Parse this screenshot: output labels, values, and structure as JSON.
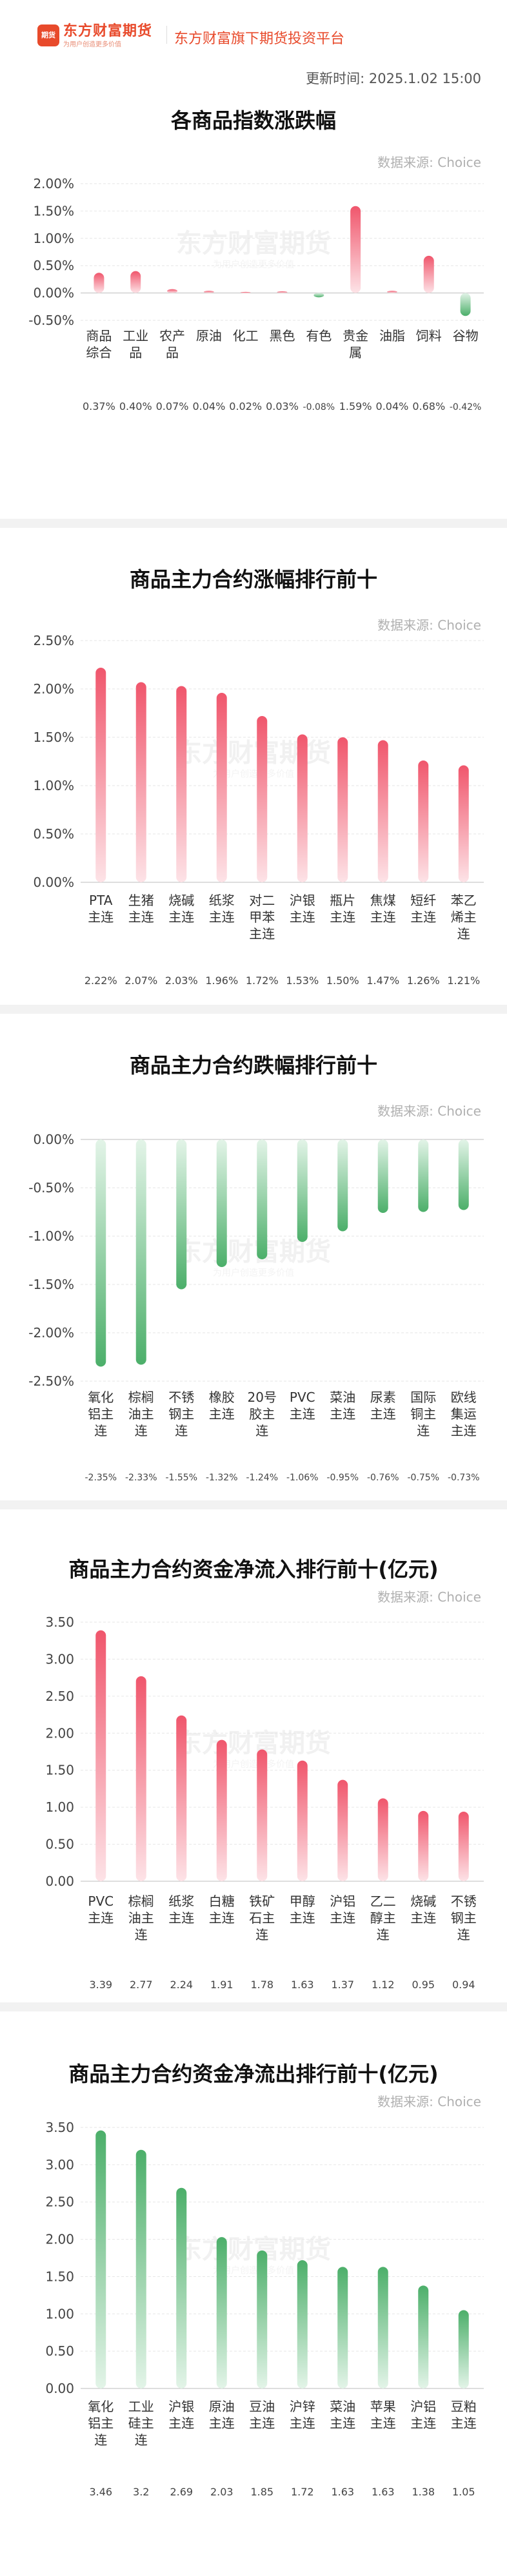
{
  "header": {
    "logo_mark": "期货",
    "logo_name": "东方财富期货",
    "logo_sub": "为用户创造更多价值",
    "slogan": "东方财富旗下期货投资平台",
    "update_label": "更新时间: ",
    "update_time": "2025.1.02 15:00"
  },
  "source_label": "数据来源: Choice",
  "watermark": {
    "main": "东方财富期货",
    "sub": "为用户创造更多价值"
  },
  "charts": [
    {
      "title": "各商品指数涨跌幅",
      "chart_data": {
        "type": "bar",
        "title": "各商品指数涨跌幅",
        "categories": [
          [
            "商品",
            "综合"
          ],
          [
            "工业",
            "品"
          ],
          [
            "农产",
            "品"
          ],
          [
            "原油"
          ],
          [
            "化工"
          ],
          [
            "黑色"
          ],
          [
            "有色"
          ],
          [
            "贵金",
            "属"
          ],
          [
            "油脂"
          ],
          [
            "饲料"
          ],
          [
            "谷物"
          ]
        ],
        "values": [
          0.37,
          0.4,
          0.07,
          0.04,
          0.02,
          0.03,
          -0.08,
          1.59,
          0.04,
          0.68,
          -0.42
        ],
        "value_labels": [
          "0.37%",
          "0.40%",
          "0.07%",
          "0.04%",
          "0.02%",
          "0.03%",
          "-0.08%",
          "1.59%",
          "0.04%",
          "0.68%",
          "-0.42%"
        ],
        "yticks": [
          "2.00%",
          "1.50%",
          "1.00%",
          "0.50%",
          "0.00%",
          "-0.50%"
        ],
        "ylim": [
          -0.5,
          2.0
        ],
        "ytick_values": [
          2.0,
          1.5,
          1.0,
          0.5,
          0.0,
          -0.5
        ],
        "positive_color": "#f0566c",
        "negative_color": "#4caf6a"
      }
    },
    {
      "title": "商品主力合约涨幅排行前十",
      "chart_data": {
        "type": "bar",
        "title": "商品主力合约涨幅排行前十",
        "categories": [
          [
            "PTA",
            "主连"
          ],
          [
            "生猪",
            "主连"
          ],
          [
            "烧碱",
            "主连"
          ],
          [
            "纸浆",
            "主连"
          ],
          [
            "对二",
            "甲苯",
            "主连"
          ],
          [
            "沪银",
            "主连"
          ],
          [
            "瓶片",
            "主连"
          ],
          [
            "焦煤",
            "主连"
          ],
          [
            "短纤",
            "主连"
          ],
          [
            "苯乙",
            "烯主",
            "连"
          ]
        ],
        "values": [
          2.22,
          2.07,
          2.03,
          1.96,
          1.72,
          1.53,
          1.5,
          1.47,
          1.26,
          1.21
        ],
        "value_labels": [
          "2.22%",
          "2.07%",
          "2.03%",
          "1.96%",
          "1.72%",
          "1.53%",
          "1.50%",
          "1.47%",
          "1.26%",
          "1.21%"
        ],
        "yticks": [
          "2.50%",
          "2.00%",
          "1.50%",
          "1.00%",
          "0.50%",
          "0.00%"
        ],
        "ylim": [
          0,
          2.5
        ],
        "ytick_values": [
          2.5,
          2.0,
          1.5,
          1.0,
          0.5,
          0.0
        ],
        "positive_color": "#f0566c",
        "negative_color": "#4caf6a"
      }
    },
    {
      "title": "商品主力合约跌幅排行前十",
      "chart_data": {
        "type": "bar",
        "title": "商品主力合约跌幅排行前十",
        "categories": [
          [
            "氧化",
            "铝主",
            "连"
          ],
          [
            "棕榈",
            "油主",
            "连"
          ],
          [
            "不锈",
            "钢主",
            "连"
          ],
          [
            "橡胶",
            "主连"
          ],
          [
            "20号",
            "胶主",
            "连"
          ],
          [
            "PVC",
            "主连"
          ],
          [
            "菜油",
            "主连"
          ],
          [
            "尿素",
            "主连"
          ],
          [
            "国际",
            "铜主",
            "连"
          ],
          [
            "欧线",
            "集运",
            "主连"
          ]
        ],
        "values": [
          -2.35,
          -2.33,
          -1.55,
          -1.32,
          -1.24,
          -1.06,
          -0.95,
          -0.76,
          -0.75,
          -0.73
        ],
        "value_labels": [
          "-2.35%",
          "-2.33%",
          "-1.55%",
          "-1.32%",
          "-1.24%",
          "-1.06%",
          "-0.95%",
          "-0.76%",
          "-0.75%",
          "-0.73%"
        ],
        "yticks": [
          "0.00%",
          "-0.50%",
          "-1.00%",
          "-1.50%",
          "-2.00%",
          "-2.50%"
        ],
        "ylim": [
          -2.5,
          0
        ],
        "ytick_values": [
          0,
          -0.5,
          -1.0,
          -1.5,
          -2.0,
          -2.5
        ],
        "positive_color": "#f0566c",
        "negative_color": "#4caf6a"
      }
    },
    {
      "title": "商品主力合约资金净流入排行前十(亿元)",
      "chart_data": {
        "type": "bar",
        "title": "商品主力合约资金净流入排行前十(亿元)",
        "categories": [
          [
            "PVC",
            "主连"
          ],
          [
            "棕榈",
            "油主",
            "连"
          ],
          [
            "纸浆",
            "主连"
          ],
          [
            "白糖",
            "主连"
          ],
          [
            "铁矿",
            "石主",
            "连"
          ],
          [
            "甲醇",
            "主连"
          ],
          [
            "沪铝",
            "主连"
          ],
          [
            "乙二",
            "醇主",
            "连"
          ],
          [
            "烧碱",
            "主连"
          ],
          [
            "不锈",
            "钢主",
            "连"
          ]
        ],
        "values": [
          3.39,
          2.77,
          2.24,
          1.91,
          1.78,
          1.63,
          1.37,
          1.12,
          0.95,
          0.94
        ],
        "value_labels": [
          "3.39",
          "2.77",
          "2.24",
          "1.91",
          "1.78",
          "1.63",
          "1.37",
          "1.12",
          "0.95",
          "0.94"
        ],
        "yticks": [
          "3.50",
          "3.00",
          "2.50",
          "2.00",
          "1.50",
          "1.00",
          "0.50",
          "0.00"
        ],
        "ylim": [
          0,
          3.5
        ],
        "ytick_values": [
          3.5,
          3.0,
          2.5,
          2.0,
          1.5,
          1.0,
          0.5,
          0.0
        ],
        "positive_color": "#f0566c",
        "negative_color": "#4caf6a"
      }
    },
    {
      "title": "商品主力合约资金净流出排行前十(亿元)",
      "chart_data": {
        "type": "bar",
        "title": "商品主力合约资金净流出排行前十(亿元)",
        "categories": [
          [
            "氧化",
            "铝主",
            "连"
          ],
          [
            "工业",
            "硅主",
            "连"
          ],
          [
            "沪银",
            "主连"
          ],
          [
            "原油",
            "主连"
          ],
          [
            "豆油",
            "主连"
          ],
          [
            "沪锌",
            "主连"
          ],
          [
            "菜油",
            "主连"
          ],
          [
            "苹果",
            "主连"
          ],
          [
            "沪铝",
            "主连"
          ],
          [
            "豆粕",
            "主连"
          ]
        ],
        "values": [
          3.46,
          3.2,
          2.69,
          2.03,
          1.85,
          1.72,
          1.63,
          1.63,
          1.38,
          1.05
        ],
        "value_labels": [
          "3.46",
          "3.2",
          "2.69",
          "2.03",
          "1.85",
          "1.72",
          "1.63",
          "1.63",
          "1.38",
          "1.05"
        ],
        "yticks": [
          "3.50",
          "3.00",
          "2.50",
          "2.00",
          "1.50",
          "1.00",
          "0.50",
          "0.00"
        ],
        "ylim": [
          0,
          3.5
        ],
        "ytick_values": [
          3.5,
          3.0,
          2.5,
          2.0,
          1.5,
          1.0,
          0.5,
          0.0
        ],
        "positive_color": "#4caf6a",
        "negative_color": "#4caf6a",
        "all_green": true
      }
    }
  ]
}
